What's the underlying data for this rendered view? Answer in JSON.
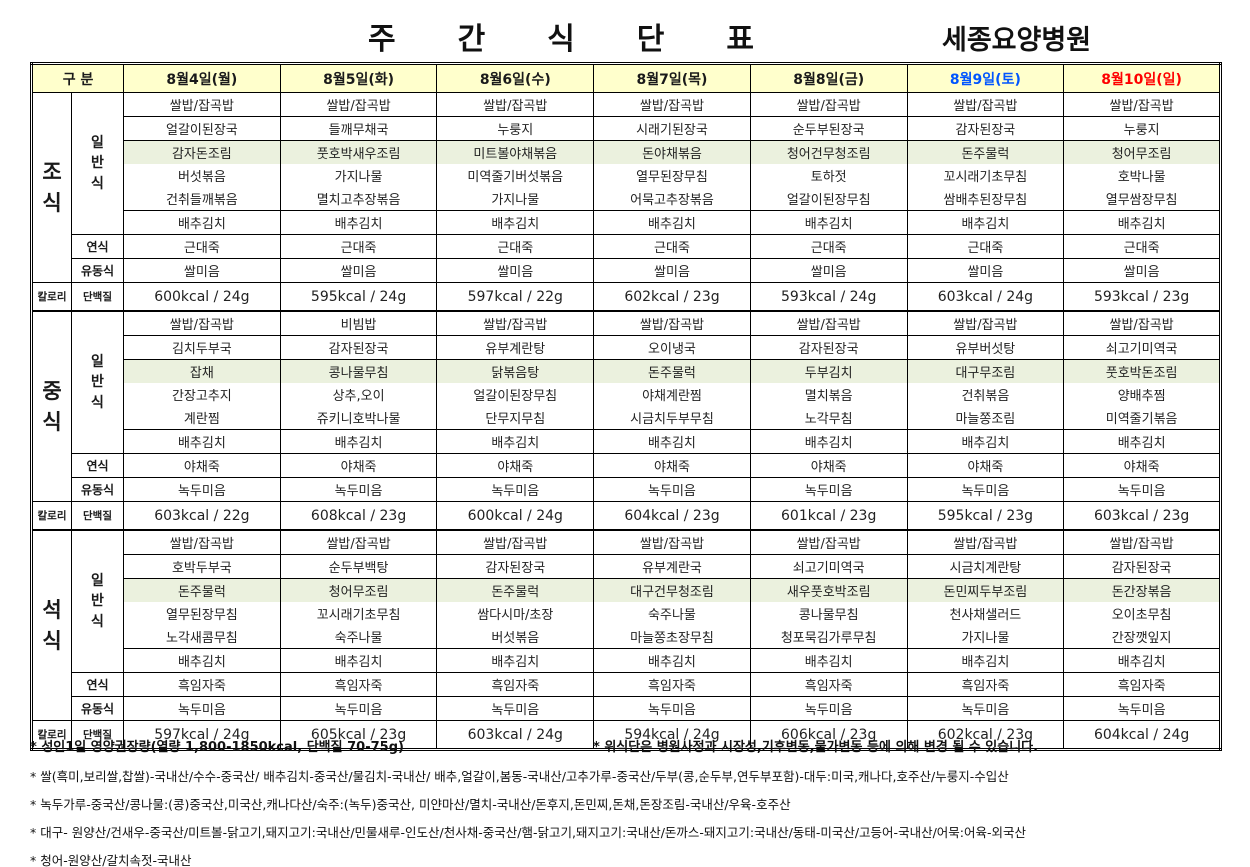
{
  "title": "주간식단표",
  "hospital": "세종요양병원",
  "colors": {
    "header_bg": "#FFFFCC",
    "highlight_bg": "#EBF1DE",
    "saturday_text": "#0055FF",
    "sunday_text": "#FF0000"
  },
  "table": {
    "corner": "구  분",
    "days": [
      {
        "label": "8월4일(월)",
        "color": "#1a1a1a"
      },
      {
        "label": "8월5일(화)",
        "color": "#1a1a1a"
      },
      {
        "label": "8월6일(수)",
        "color": "#1a1a1a"
      },
      {
        "label": "8월7일(목)",
        "color": "#1a1a1a"
      },
      {
        "label": "8월8일(금)",
        "color": "#1a1a1a"
      },
      {
        "label": "8월9일(토)",
        "color": "#0055FF"
      },
      {
        "label": "8월10일(일)",
        "color": "#FF0000"
      }
    ]
  },
  "row_labels": {
    "regular": "일반식",
    "soft": "연식",
    "liquid": "유동식",
    "calorie": "칼로리",
    "protein": "단백질"
  },
  "meals": [
    {
      "name": "조식",
      "days": [
        {
          "items": [
            "쌀밥/잡곡밥",
            "얼갈이된장국",
            "감자돈조림",
            "버섯볶음",
            "건취들깨볶음",
            "배추김치"
          ]
        },
        {
          "items": [
            "쌀밥/잡곡밥",
            "들깨무채국",
            "풋호박새우조림",
            "가지나물",
            "멸치고추장볶음",
            "배추김치"
          ]
        },
        {
          "items": [
            "쌀밥/잡곡밥",
            "누룽지",
            "미트볼야채볶음",
            "미역줄기버섯볶음",
            "가지나물",
            "배추김치"
          ]
        },
        {
          "items": [
            "쌀밥/잡곡밥",
            "시래기된장국",
            "돈야채볶음",
            "열무된장무침",
            "어묵고추장볶음",
            "배추김치"
          ]
        },
        {
          "items": [
            "쌀밥/잡곡밥",
            "순두부된장국",
            "청어건무청조림",
            "토하젓",
            "얼갈이된장무침",
            "배추김치"
          ]
        },
        {
          "items": [
            "쌀밥/잡곡밥",
            "감자된장국",
            "돈주물럭",
            "꼬시래기초무침",
            "쌈배추된장무침",
            "배추김치"
          ]
        },
        {
          "items": [
            "쌀밥/잡곡밥",
            "누룽지",
            "청어무조림",
            "호박나물",
            "열무쌈장무침",
            "배추김치"
          ]
        }
      ],
      "soft": [
        "근대죽",
        "근대죽",
        "근대죽",
        "근대죽",
        "근대죽",
        "근대죽",
        "근대죽"
      ],
      "liquid": [
        "쌀미음",
        "쌀미음",
        "쌀미음",
        "쌀미음",
        "쌀미음",
        "쌀미음",
        "쌀미음"
      ],
      "nutrition": [
        "600kcal  / 24g",
        "595kcal  / 24g",
        "597kcal  / 22g",
        "602kcal  / 23g",
        "593kcal  / 24g",
        "603kcal  / 24g",
        "593kcal  / 23g"
      ]
    },
    {
      "name": "중식",
      "days": [
        {
          "items": [
            "쌀밥/잡곡밥",
            "김치두부국",
            "잡채",
            "간장고추지",
            "계란찜",
            "배추김치"
          ]
        },
        {
          "items": [
            "비빔밥",
            "감자된장국",
            "콩나물무침",
            "상추,오이",
            "쥬키니호박나물",
            "배추김치"
          ]
        },
        {
          "items": [
            "쌀밥/잡곡밥",
            "유부계란탕",
            "닭볶음탕",
            "얼갈이된장무침",
            "단무지무침",
            "배추김치"
          ]
        },
        {
          "items": [
            "쌀밥/잡곡밥",
            "오이냉국",
            "돈주물럭",
            "야채계란찜",
            "시금치두부무침",
            "배추김치"
          ]
        },
        {
          "items": [
            "쌀밥/잡곡밥",
            "감자된장국",
            "두부김치",
            "멸치볶음",
            "노각무침",
            "배추김치"
          ]
        },
        {
          "items": [
            "쌀밥/잡곡밥",
            "유부버섯탕",
            "대구무조림",
            "건취볶음",
            "마늘쫑조림",
            "배추김치"
          ]
        },
        {
          "items": [
            "쌀밥/잡곡밥",
            "쇠고기미역국",
            "풋호박돈조림",
            "양배추찜",
            "미역줄기볶음",
            "배추김치"
          ]
        }
      ],
      "soft": [
        "야채죽",
        "야채죽",
        "야채죽",
        "야채죽",
        "야채죽",
        "야채죽",
        "야채죽"
      ],
      "liquid": [
        "녹두미음",
        "녹두미음",
        "녹두미음",
        "녹두미음",
        "녹두미음",
        "녹두미음",
        "녹두미음"
      ],
      "nutrition": [
        "603kcal  / 22g",
        "608kcal  / 23g",
        "600kcal  / 24g",
        "604kcal  / 23g",
        "601kcal  / 23g",
        "595kcal  / 23g",
        "603kcal  / 23g"
      ]
    },
    {
      "name": "석식",
      "days": [
        {
          "items": [
            "쌀밥/잡곡밥",
            "호박두부국",
            "돈주물럭",
            "열무된장무침",
            "노각새콤무침",
            "배추김치"
          ]
        },
        {
          "items": [
            "쌀밥/잡곡밥",
            "순두부백탕",
            "청어무조림",
            "꼬시래기초무침",
            "숙주나물",
            "배추김치"
          ]
        },
        {
          "items": [
            "쌀밥/잡곡밥",
            "감자된장국",
            "돈주물럭",
            "쌈다시마/초장",
            "버섯볶음",
            "배추김치"
          ]
        },
        {
          "items": [
            "쌀밥/잡곡밥",
            "유부계란국",
            "대구건무청조림",
            "숙주나물",
            "마늘쫑초장무침",
            "배추김치"
          ]
        },
        {
          "items": [
            "쌀밥/잡곡밥",
            "쇠고기미역국",
            "새우풋호박조림",
            "콩나물무침",
            "청포묵김가루무침",
            "배추김치"
          ]
        },
        {
          "items": [
            "쌀밥/잡곡밥",
            "시금치계란탕",
            "돈민찌두부조림",
            "천사채샐러드",
            "가지나물",
            "배추김치"
          ]
        },
        {
          "items": [
            "쌀밥/잡곡밥",
            "감자된장국",
            "돈간장볶음",
            "오이초무침",
            "간장깻잎지",
            "배추김치"
          ]
        }
      ],
      "soft": [
        "흑임자죽",
        "흑임자죽",
        "흑임자죽",
        "흑임자죽",
        "흑임자죽",
        "흑임자죽",
        "흑임자죽"
      ],
      "liquid": [
        "녹두미음",
        "녹두미음",
        "녹두미음",
        "녹두미음",
        "녹두미음",
        "녹두미음",
        "녹두미음"
      ],
      "nutrition": [
        "597kcal  / 24g",
        "605kcal  / 23g",
        "603kcal  / 24g",
        "594kcal  / 24g",
        "606kcal  / 23g",
        "602kcal  / 23g",
        "604kcal  / 24g"
      ]
    }
  ],
  "notes": {
    "daily_allowance": "* 성인1일 영양권장량(열량 1,800-1850kcal, 단백질 70-75g)",
    "change_notice": "* 위식단은 병원사정과 시장성,기후변동,물가변동 등에 의해 변경 될 수 있습니다.",
    "origins": [
      "* 쌀(흑미,보리쌀,찹쌀)-국내산/수수-중국산/ 배추김치-중국산/물김치-국내산/ 배추,얼갈이,봄동-국내산/고추가루-중국산/두부(콩,순두부,연두부포함)-대두:미국,캐나다,호주산/누룽지-수입산",
      "* 녹두가루-중국산/콩나물:(콩)중국산,미국산,캐나다산/숙주:(녹두)중국산, 미얀마산/멸치-국내산/돈후지,돈민찌,돈채,돈장조림-국내산/우육-호주산",
      "* 대구- 원양산/건새우-중국산/미트볼-닭고기,돼지고기:국내산/민물새루-인도산/천사채-중국산/햄-닭고기,돼지고기:국내산/돈까스-돼지고기:국내산/동태-미국산/고등어-국내산/어묵:어육-외국산",
      "* 청어-원양산/갈치속젓-국내산"
    ]
  }
}
